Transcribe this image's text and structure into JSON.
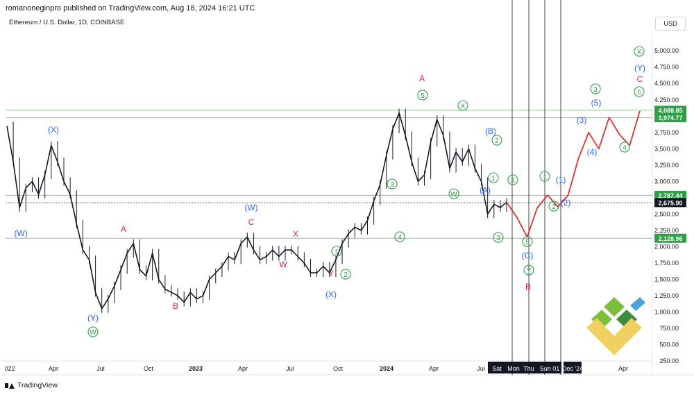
{
  "header": {
    "publisher_line": "romanoneginpro published on TradingView.com, Aug 18, 2024 16:21 UTC"
  },
  "symbol_line": "Ethereum / U.S. Dollar, 1D, COINBASE",
  "currency_button": "USD",
  "footer_brand": "TradingView",
  "colors": {
    "candle": "#131722",
    "wave_blue": "#2962ff",
    "wave_green": "#2e9e47",
    "wave_red": "#d3283b",
    "hline": "#8bc891",
    "projection": "#e03030",
    "price_tag_green": "#2e9e47",
    "price_tag_dark": "#131722"
  },
  "chart_data": {
    "type": "line",
    "series": [
      {
        "values": [
          3850,
          3300,
          2600,
          2900,
          3000,
          2800,
          3100,
          3550,
          3300,
          3000,
          2800,
          2350,
          1950,
          1800,
          1300,
          1050,
          1200,
          1400,
          1650,
          1900,
          2050,
          1650,
          1550,
          1900,
          1500,
          1350,
          1300,
          1250,
          1150,
          1300,
          1200,
          1250,
          1500,
          1600,
          1700,
          1850,
          1800,
          2050,
          2150,
          1950,
          1800,
          1850,
          1950,
          1850,
          1950,
          1950,
          1850,
          1750,
          1600,
          1600,
          1700,
          1600,
          1800,
          2050,
          2200,
          2300,
          2250,
          2400,
          2700,
          2950,
          3400,
          3800,
          4050,
          3700,
          3300,
          3000,
          3100,
          3600,
          3950,
          3700,
          3200,
          3450,
          3300,
          3500,
          3200,
          3000,
          2500,
          2650,
          2600,
          2680
        ]
      }
    ],
    "projection_path": [
      2680,
      2450,
      2150,
      2600,
      2790,
      2610,
      2790,
      3350,
      3750,
      3500,
      3980,
      3720,
      3550,
      4080
    ],
    "y_ticks": [
      "5,000.00",
      "4,750.00",
      "4,500.00",
      "4,250.00",
      "3,750.00",
      "3,500.00",
      "3,250.00",
      "3,000.00",
      "2,500.00",
      "2,250.00",
      "2,000.00",
      "1,750.00",
      "1,500.00",
      "1,250.00",
      "1,000.00",
      "750.00",
      "500.00",
      "250.00"
    ],
    "y_tick_values": [
      5000,
      4750,
      4500,
      4250,
      3750,
      3500,
      3250,
      3000,
      2500,
      2250,
      2000,
      1750,
      1500,
      1250,
      1000,
      750,
      500,
      250
    ],
    "x_ticks": [
      "022",
      "Apr",
      "Jul",
      "Oct",
      "2023",
      "Apr",
      "Jul",
      "Oct",
      "2024",
      "Apr",
      "Jul",
      "Sat",
      "Mon",
      "Thu",
      "Sun 01",
      "Dec '24",
      "Apr"
    ],
    "horizontal_levels": [
      {
        "value": 4088.85,
        "label": "4,088.85"
      },
      {
        "value": 3974.77,
        "label": "3,974.77"
      },
      {
        "value": 2787.44,
        "label": "2,787.44"
      },
      {
        "value": 2128.96,
        "label": "2,128.96"
      }
    ],
    "last_price": {
      "value": 2675.9,
      "label": "2,675.90"
    },
    "ylim": [
      250,
      5300
    ],
    "wave_labels": [
      {
        "text": "(W)",
        "color": "blue"
      },
      {
        "text": "(X)",
        "color": "blue"
      },
      {
        "text": "(Y)",
        "color": "blue"
      },
      {
        "text": "W",
        "color": "green",
        "circled": true
      },
      {
        "text": "A",
        "color": "red"
      },
      {
        "text": "B",
        "color": "red"
      },
      {
        "text": "(W)",
        "color": "blue"
      },
      {
        "text": "C",
        "color": "red"
      },
      {
        "text": "X",
        "color": "red"
      },
      {
        "text": "W",
        "color": "red"
      },
      {
        "text": "Y",
        "color": "red"
      },
      {
        "text": "(X)",
        "color": "blue"
      },
      {
        "text": "1",
        "color": "green",
        "circled": true
      },
      {
        "text": "2",
        "color": "green",
        "circled": true
      },
      {
        "text": "3",
        "color": "green",
        "circled": true
      },
      {
        "text": "4",
        "color": "green",
        "circled": true
      },
      {
        "text": "A",
        "color": "red"
      },
      {
        "text": "5",
        "color": "green",
        "circled": true
      },
      {
        "text": "X",
        "color": "green",
        "circled": true
      },
      {
        "text": "W",
        "color": "green",
        "circled": true
      },
      {
        "text": "(B)",
        "color": "blue"
      },
      {
        "text": "2",
        "color": "green",
        "circled": true
      },
      {
        "text": "1",
        "color": "green",
        "circled": true
      },
      {
        "text": "(A)",
        "color": "blue"
      },
      {
        "text": "3",
        "color": "green",
        "circled": true
      },
      {
        "text": "4",
        "color": "green",
        "circled": true
      },
      {
        "text": "5",
        "color": "green",
        "circled": true
      },
      {
        "text": "(C)",
        "color": "blue"
      },
      {
        "text": "Y",
        "color": "green",
        "circled": true
      },
      {
        "text": "B",
        "color": "red"
      },
      {
        "text": "1",
        "color": "green",
        "circled": true
      },
      {
        "text": "2",
        "color": "green",
        "circled": true
      },
      {
        "text": "(1)",
        "color": "blue"
      },
      {
        "text": "(2)",
        "color": "blue"
      },
      {
        "text": "(3)",
        "color": "blue"
      },
      {
        "text": "(4)",
        "color": "blue"
      },
      {
        "text": "3",
        "color": "green",
        "circled": true
      },
      {
        "text": "(5)",
        "color": "blue"
      },
      {
        "text": "4",
        "color": "green",
        "circled": true
      },
      {
        "text": "X",
        "color": "green",
        "circled": true
      },
      {
        "text": "(Y)",
        "color": "blue"
      },
      {
        "text": "C",
        "color": "red"
      },
      {
        "text": "5",
        "color": "green",
        "circled": true
      }
    ]
  }
}
